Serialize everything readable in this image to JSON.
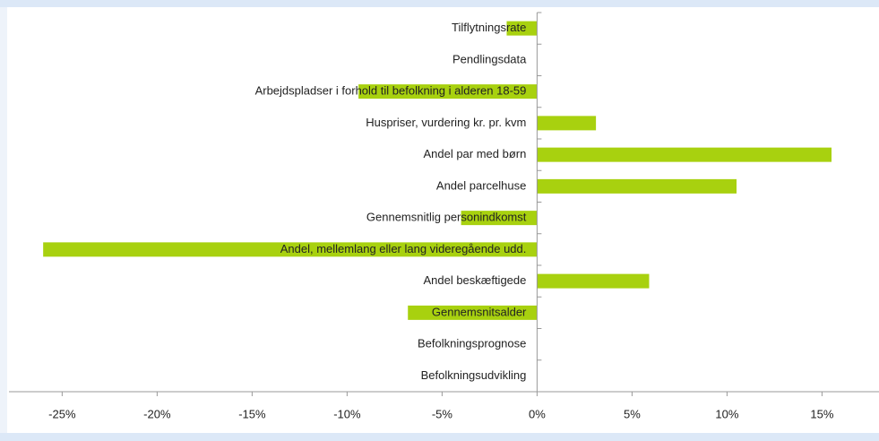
{
  "chart_data": {
    "type": "hbar",
    "categories": [
      "Tilflytningsrate",
      "Pendlingsdata",
      "Arbejdspladser i forhold til befolkning i alderen 18-59",
      "Huspriser, vurdering kr. pr. kvm",
      "Andel par med børn",
      "Andel parcelhuse",
      "Gennemsnitlig personindkomst",
      "Andel, mellemlang eller lang videregående udd.",
      "Andel beskæftigede",
      "Gennemsnitsalder",
      "Befolkningsprognose",
      "Befolkningsudvikling"
    ],
    "values": [
      -1.6,
      0,
      -9.4,
      3.1,
      15.5,
      10.5,
      -4.0,
      -26.0,
      5.9,
      -6.8,
      0,
      0
    ],
    "color": "#a8d10f",
    "xlim": [
      -27.8,
      18
    ],
    "xticks": [
      {
        "value": -25,
        "label": "-25%"
      },
      {
        "value": -20,
        "label": "-20%"
      },
      {
        "value": -15,
        "label": "-15%"
      },
      {
        "value": -10,
        "label": "-10%"
      },
      {
        "value": -5,
        "label": "-5%"
      },
      {
        "value": 0,
        "label": "0%"
      },
      {
        "value": 5,
        "label": "5%"
      },
      {
        "value": 10,
        "label": "10%"
      },
      {
        "value": 15,
        "label": "15%"
      }
    ]
  }
}
